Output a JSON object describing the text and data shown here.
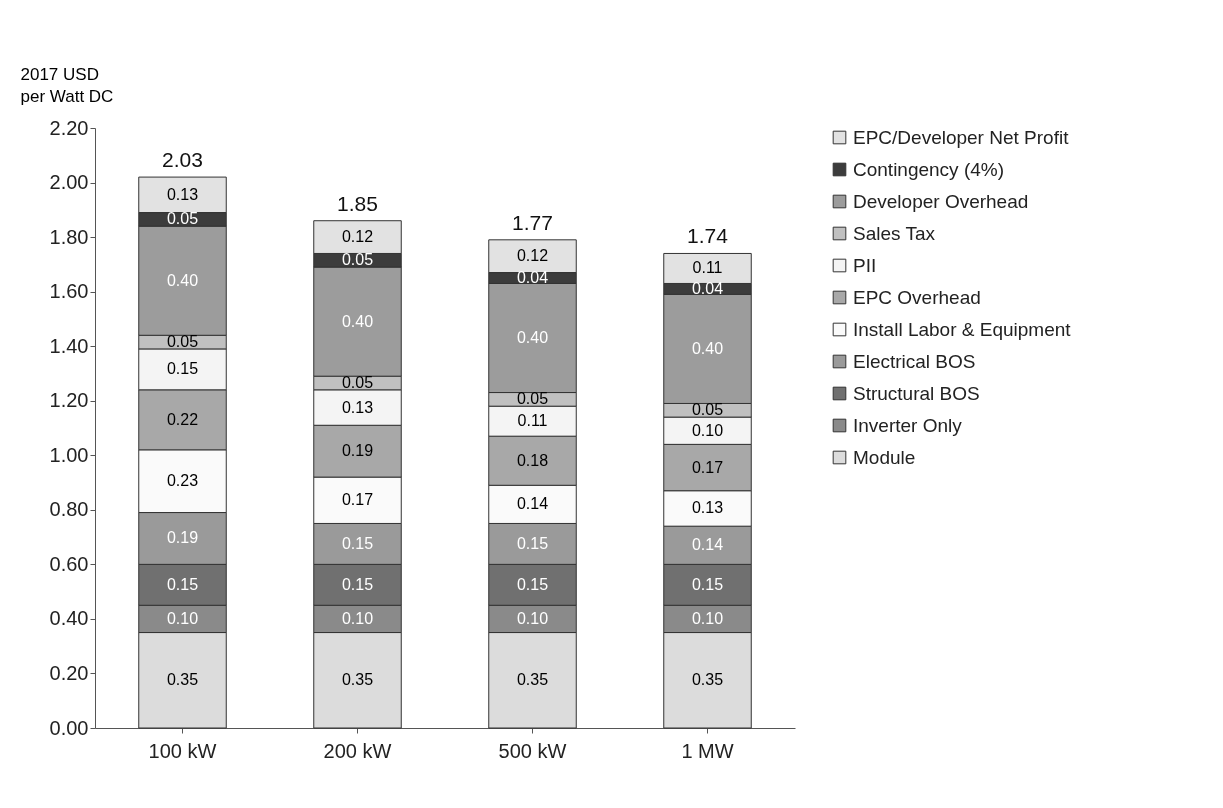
{
  "chart_data": {
    "type": "bar",
    "stacked": true,
    "ylabel": "2017 USD\nper Watt DC",
    "categories": [
      "100 kW",
      "200 kW",
      "500 kW",
      "1 MW"
    ],
    "series": [
      {
        "name": "Module",
        "color": "#dcdcdc",
        "values": [
          0.35,
          0.35,
          0.35,
          0.35
        ],
        "value_labels": [
          "0.35",
          "0.35",
          "0.35",
          "0.35"
        ]
      },
      {
        "name": "Inverter Only",
        "color": "#8a8a8a",
        "values": [
          0.1,
          0.1,
          0.1,
          0.1
        ],
        "value_labels": [
          "0.10",
          "0.10",
          "0.10",
          "0.10"
        ]
      },
      {
        "name": "Structural BOS",
        "color": "#707070",
        "values": [
          0.15,
          0.15,
          0.15,
          0.15
        ],
        "value_labels": [
          "0.15",
          "0.15",
          "0.15",
          "0.15"
        ]
      },
      {
        "name": "Electrical BOS",
        "color": "#9a9a9a",
        "values": [
          0.19,
          0.15,
          0.15,
          0.14
        ],
        "value_labels": [
          "0.19",
          "0.15",
          "0.15",
          "0.14"
        ]
      },
      {
        "name": "Install Labor & Equipment",
        "color": "#fafafa",
        "values": [
          0.23,
          0.17,
          0.14,
          0.13
        ],
        "value_labels": [
          "0.23",
          "0.17",
          "0.14",
          "0.13"
        ]
      },
      {
        "name": "EPC Overhead",
        "color": "#a8a8a8",
        "values": [
          0.22,
          0.19,
          0.18,
          0.17
        ],
        "value_labels": [
          "0.22",
          "0.19",
          "0.18",
          "0.17"
        ]
      },
      {
        "name": "PII",
        "color": "#f4f4f4",
        "values": [
          0.15,
          0.13,
          0.11,
          0.1
        ],
        "value_labels": [
          "0.15",
          "0.13",
          "0.11",
          "0.10"
        ]
      },
      {
        "name": "Sales Tax",
        "color": "#c0c0c0",
        "values": [
          0.05,
          0.05,
          0.05,
          0.05
        ],
        "value_labels": [
          "0.05",
          "0.05",
          "0.05",
          "0.05"
        ]
      },
      {
        "name": "Developer Overhead",
        "color": "#9c9c9c",
        "values": [
          0.4,
          0.4,
          0.4,
          0.4
        ],
        "value_labels": [
          "0.40",
          "0.40",
          "0.40",
          "0.40"
        ]
      },
      {
        "name": "Contingency (4%)",
        "color": "#3c3c3c",
        "values": [
          0.05,
          0.05,
          0.04,
          0.04
        ],
        "value_labels": [
          "0.05",
          "0.05",
          "0.04",
          "0.04"
        ]
      },
      {
        "name": "EPC/Developer Net Profit",
        "color": "#e2e2e2",
        "values": [
          0.13,
          0.12,
          0.12,
          0.11
        ],
        "value_labels": [
          "0.13",
          "0.12",
          "0.12",
          "0.11"
        ]
      }
    ],
    "totals": [
      "2.03",
      "1.85",
      "1.77",
      "1.74"
    ],
    "ylim": [
      0,
      2.2
    ],
    "yticks": [
      {
        "value": 0,
        "label": "0.00"
      },
      {
        "value": 0.2,
        "label": "0.20"
      },
      {
        "value": 0.4,
        "label": "0.40"
      },
      {
        "value": 0.6,
        "label": "0.60"
      },
      {
        "value": 0.8,
        "label": "0.80"
      },
      {
        "value": 1,
        "label": "1.00"
      },
      {
        "value": 1.2,
        "label": "1.20"
      },
      {
        "value": 1.4,
        "label": "1.40"
      },
      {
        "value": 1.6,
        "label": "1.60"
      },
      {
        "value": 1.8,
        "label": "1.80"
      },
      {
        "value": 2,
        "label": "2.00"
      },
      {
        "value": 2.2,
        "label": "2.20"
      }
    ],
    "grid": false,
    "legend": "right"
  }
}
